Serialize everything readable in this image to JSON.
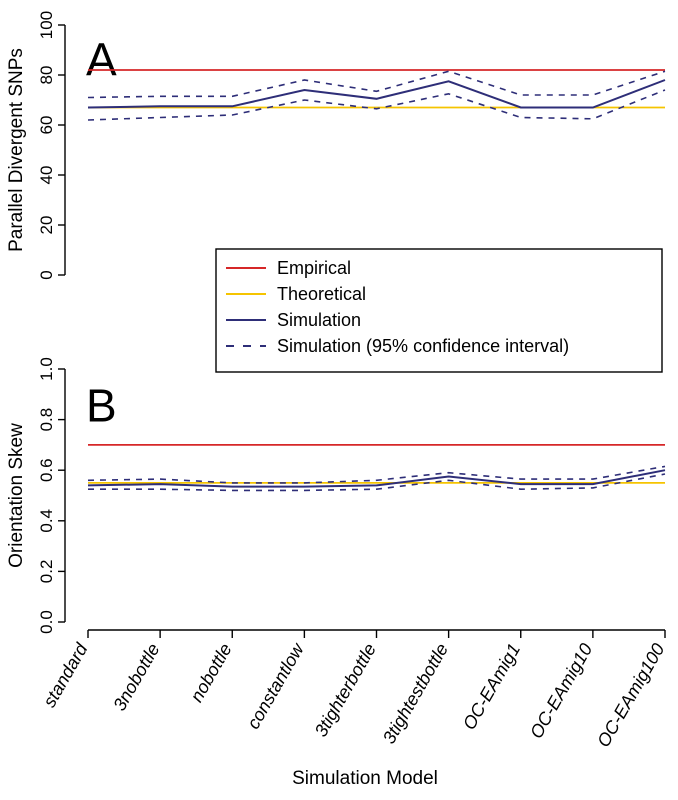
{
  "figure": {
    "xlabel": "Simulation Model",
    "categories": [
      "standard",
      "3nobottle",
      "nobottle",
      "constantlow",
      "3tighterbottle",
      "3tightestbottle",
      "OC-EAmig1",
      "OC-EAmig10",
      "OC-EAmig100"
    ],
    "colors": {
      "empirical": "#d62728",
      "theoretical": "#f5c400",
      "simulation": "#2e2e78"
    },
    "legend": {
      "placement": "between panels, right",
      "entries": [
        {
          "key": "empirical",
          "label": "Empirical",
          "style": "solid"
        },
        {
          "key": "theoretical",
          "label": "Theoretical",
          "style": "solid"
        },
        {
          "key": "simulation",
          "label": "Simulation",
          "style": "solid"
        },
        {
          "key": "simulation",
          "label": "Simulation (95% confidence interval)",
          "style": "dashed"
        }
      ]
    }
  },
  "chart_data": [
    {
      "type": "line",
      "panel_label": "A",
      "ylabel": "Parallel Divergent SNPs",
      "ylim": [
        0,
        100
      ],
      "yticks": [
        "0",
        "20",
        "40",
        "60",
        "80",
        "100"
      ],
      "ytick_values": [
        0,
        20,
        40,
        60,
        80,
        100
      ],
      "categories": [
        "standard",
        "3nobottle",
        "nobottle",
        "constantlow",
        "3tighterbottle",
        "3tightestbottle",
        "OC-EAmig1",
        "OC-EAmig10",
        "OC-EAmig100"
      ],
      "series": [
        {
          "key": "empirical",
          "values": [
            82,
            82,
            82,
            82,
            82,
            82,
            82,
            82,
            82
          ]
        },
        {
          "key": "theoretical",
          "values": [
            67,
            67,
            67,
            67,
            67,
            67,
            67,
            67,
            67
          ]
        },
        {
          "key": "simulation",
          "values": [
            67,
            67.5,
            67.5,
            74,
            70.5,
            77.5,
            67,
            67,
            78
          ]
        },
        {
          "key": "ci_upper",
          "values": [
            71,
            71.5,
            71.5,
            78,
            73.5,
            81.5,
            72,
            72,
            81.5
          ]
        },
        {
          "key": "ci_lower",
          "values": [
            62,
            63,
            64,
            70,
            66.5,
            72.5,
            63,
            62.5,
            74
          ]
        }
      ]
    },
    {
      "type": "line",
      "panel_label": "B",
      "ylabel": "Orientation Skew",
      "ylim": [
        0,
        1
      ],
      "yticks": [
        "0.0",
        "0.2",
        "0.4",
        "0.6",
        "0.8",
        "1.0"
      ],
      "ytick_values": [
        0,
        0.2,
        0.4,
        0.6,
        0.8,
        1.0
      ],
      "categories": [
        "standard",
        "3nobottle",
        "nobottle",
        "constantlow",
        "3tighterbottle",
        "3tightestbottle",
        "OC-EAmig1",
        "OC-EAmig10",
        "OC-EAmig100"
      ],
      "series": [
        {
          "key": "empirical",
          "values": [
            0.7,
            0.7,
            0.7,
            0.7,
            0.7,
            0.7,
            0.7,
            0.7,
            0.7
          ]
        },
        {
          "key": "theoretical",
          "values": [
            0.55,
            0.55,
            0.55,
            0.55,
            0.55,
            0.55,
            0.55,
            0.55,
            0.55
          ]
        },
        {
          "key": "simulation",
          "values": [
            0.54,
            0.545,
            0.535,
            0.535,
            0.54,
            0.575,
            0.545,
            0.545,
            0.6
          ]
        },
        {
          "key": "ci_upper",
          "values": [
            0.56,
            0.565,
            0.55,
            0.55,
            0.56,
            0.59,
            0.565,
            0.565,
            0.615
          ]
        },
        {
          "key": "ci_lower",
          "values": [
            0.525,
            0.525,
            0.52,
            0.52,
            0.525,
            0.56,
            0.525,
            0.53,
            0.585
          ]
        }
      ]
    }
  ]
}
